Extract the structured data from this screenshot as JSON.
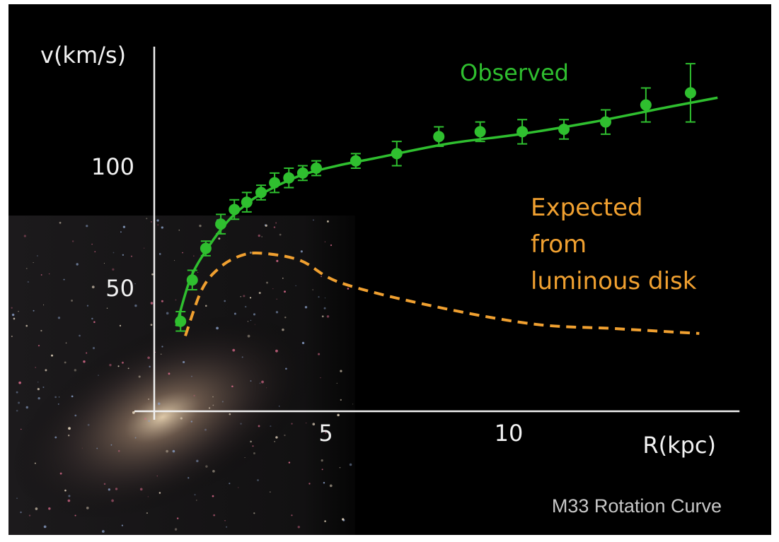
{
  "chart_data": {
    "type": "scatter",
    "title": "M33 Rotation Curve",
    "x_label": "R(kpc)",
    "y_label": "v(km/s)",
    "xlim": [
      0,
      16
    ],
    "ylim": [
      0,
      150
    ],
    "xticks": [
      5,
      10
    ],
    "yticks": [
      50,
      100
    ],
    "grid": false,
    "series": [
      {
        "name": "Observed",
        "type": "scatter",
        "color": "#2fbf2f",
        "x": [
          0.72,
          1.04,
          1.41,
          1.82,
          2.19,
          2.53,
          2.92,
          3.29,
          3.68,
          4.06,
          4.43,
          5.51,
          6.63,
          7.78,
          8.91,
          10.06,
          11.2,
          12.34,
          13.44,
          14.66
        ],
        "values": [
          37,
          54,
          67,
          77,
          83,
          86,
          90,
          94,
          96,
          98,
          100,
          103,
          106,
          113,
          115,
          115,
          116,
          119,
          126,
          131
        ],
        "errors": [
          4,
          4,
          3,
          4,
          4,
          4,
          3,
          4,
          4,
          3,
          3,
          3,
          5,
          4,
          4,
          5,
          4,
          5,
          7,
          12
        ],
        "fit": {
          "x": [
            0.6,
            1,
            1.5,
            2,
            2.5,
            3,
            4,
            5,
            6,
            8,
            10,
            12,
            14,
            15.4
          ],
          "values": [
            35,
            55,
            68,
            78,
            85,
            90,
            97,
            101,
            104,
            110,
            114,
            119,
            125,
            129
          ]
        }
      },
      {
        "name": "Expected\nfrom\nluminous disk",
        "type": "line",
        "dashed": true,
        "color": "#f0a030",
        "x": [
          0.85,
          1.3,
          1.78,
          2.36,
          2.94,
          4,
          5.07,
          7.39,
          10.3,
          12.6,
          14.9
        ],
        "values": [
          31,
          50,
          59,
          64,
          65,
          62,
          53,
          44,
          36,
          34,
          32
        ]
      }
    ]
  }
}
